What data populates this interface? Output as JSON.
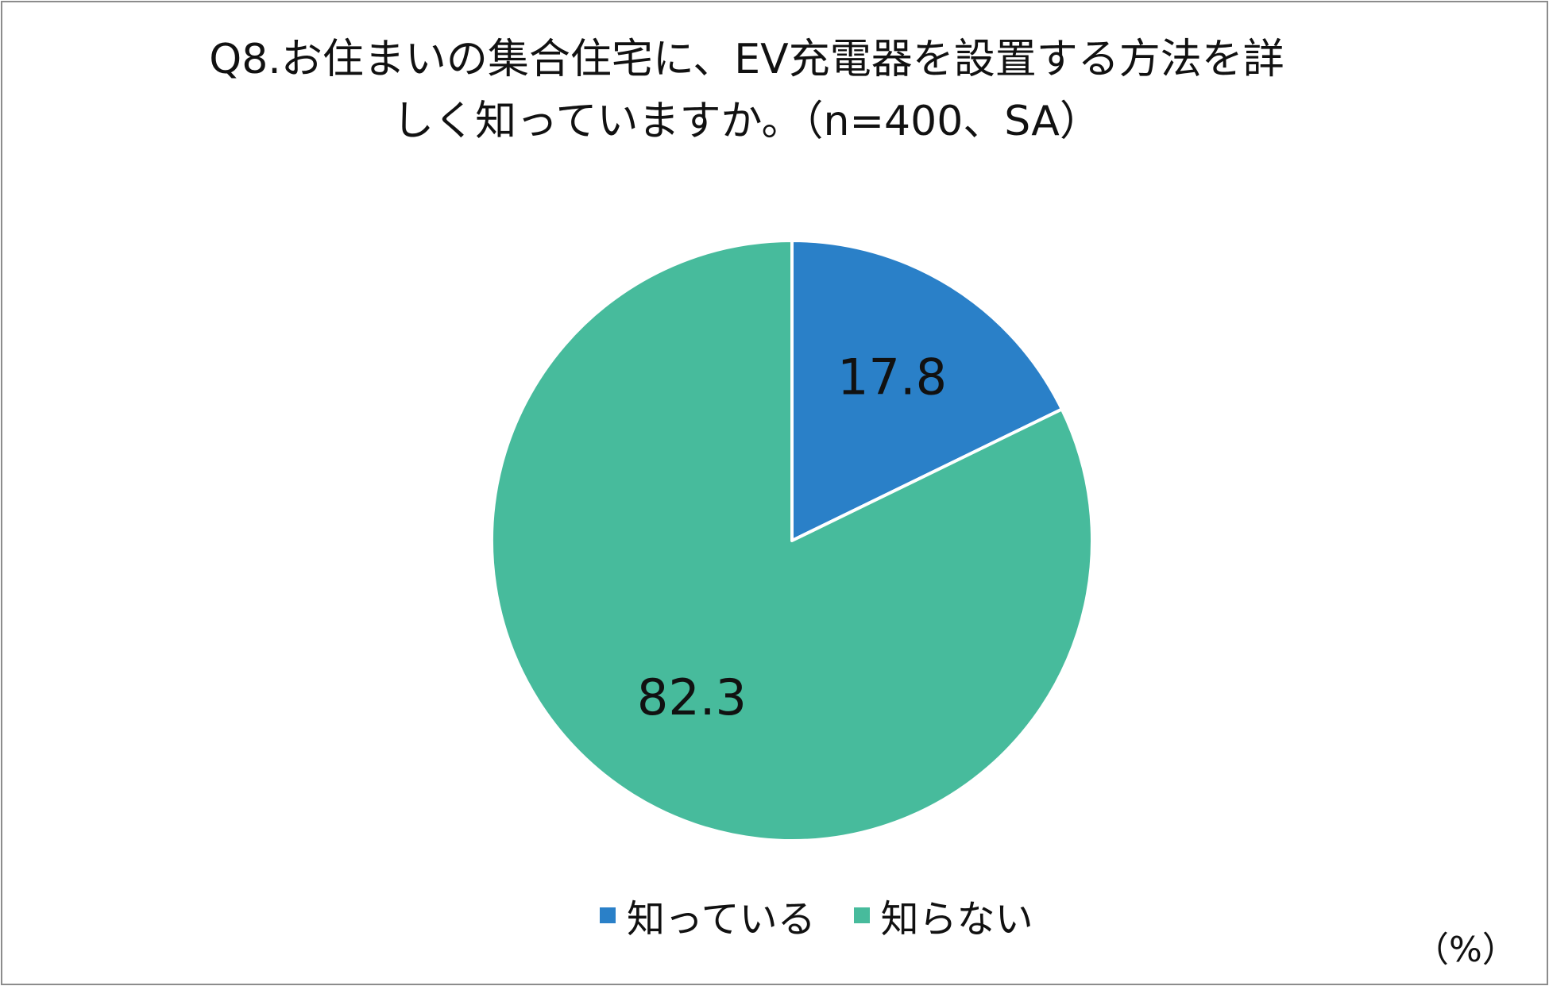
{
  "chart_data": {
    "type": "pie",
    "title_lines": [
      "Q8.お住まいの集合住宅に、EV充電器を設置する方法を詳",
      "しく知っていますか。（n=400、SA）"
    ],
    "unit_label": "（%）",
    "start_angle_deg": 0,
    "direction": "clockwise",
    "slices": [
      {
        "label": "知っている",
        "value": 17.8,
        "value_label": "17.8",
        "color": "#2a80c8"
      },
      {
        "label": "知らない",
        "value": 82.3,
        "value_label": "82.3",
        "color": "#47bb9c"
      }
    ],
    "legend_position": "bottom"
  }
}
